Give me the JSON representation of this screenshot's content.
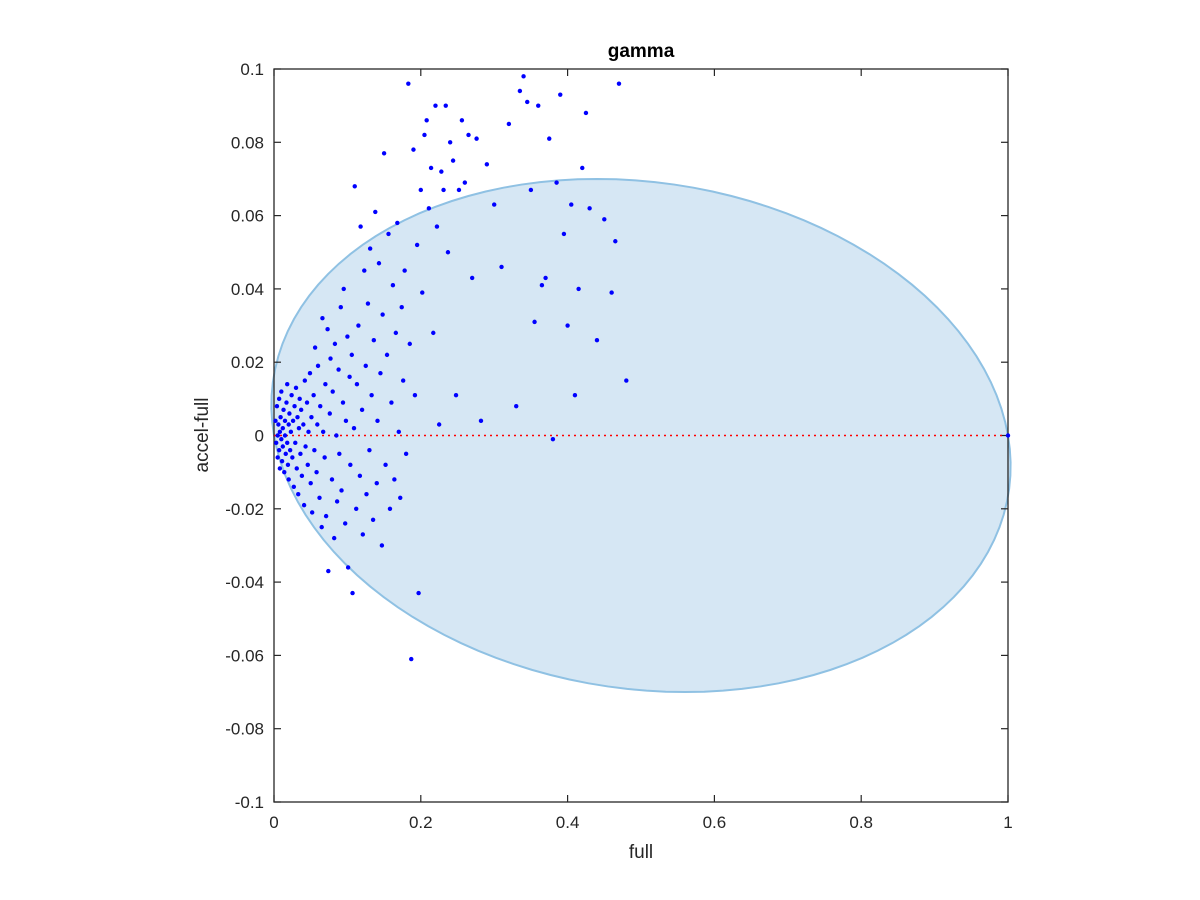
{
  "chart_data": {
    "type": "scatter",
    "title": "gamma",
    "xlabel": "full",
    "ylabel": "accel-full",
    "xlim": [
      0,
      1
    ],
    "ylim": [
      -0.1,
      0.1
    ],
    "xticks": [
      0,
      0.2,
      0.4,
      0.6,
      0.8,
      1
    ],
    "xtick_labels": [
      "0",
      "0.2",
      "0.4",
      "0.6",
      "0.8",
      "1"
    ],
    "yticks": [
      -0.1,
      -0.08,
      -0.06,
      -0.04,
      -0.02,
      0,
      0.02,
      0.04,
      0.06,
      0.08,
      0.1
    ],
    "ytick_labels": [
      "-0.1",
      "-0.08",
      "-0.06",
      "-0.04",
      "-0.02",
      "0",
      "0.02",
      "0.04",
      "0.06",
      "0.08",
      "0.1"
    ],
    "grid": false,
    "colors": {
      "points": "#0000ff",
      "ellipse_fill": "#d6e7f4",
      "ellipse_edge": "#8fc1e3",
      "reference_line": "#ff0000",
      "axes": "#262626"
    },
    "ellipse": {
      "center": [
        0.5,
        0.0
      ],
      "x_radius": 0.5,
      "y_radius": 0.07,
      "tilt": "slight"
    },
    "reference_line": {
      "y": 0,
      "x_range": [
        0,
        1
      ],
      "style": "dotted"
    },
    "series": [
      {
        "points": [
          [
            0.002,
            0.004
          ],
          [
            0.003,
            -0.002
          ],
          [
            0.004,
            0.008
          ],
          [
            0.005,
            0.0
          ],
          [
            0.005,
            -0.006
          ],
          [
            0.006,
            0.003
          ],
          [
            0.007,
            0.01
          ],
          [
            0.007,
            -0.004
          ],
          [
            0.008,
            0.001
          ],
          [
            0.008,
            -0.009
          ],
          [
            0.009,
            0.005
          ],
          [
            0.01,
            -0.001
          ],
          [
            0.01,
            0.012
          ],
          [
            0.011,
            -0.007
          ],
          [
            0.012,
            0.002
          ],
          [
            0.012,
            -0.003
          ],
          [
            0.013,
            0.007
          ],
          [
            0.014,
            -0.01
          ],
          [
            0.015,
            0.004
          ],
          [
            0.015,
            0.0
          ],
          [
            0.016,
            -0.005
          ],
          [
            0.017,
            0.009
          ],
          [
            0.018,
            -0.002
          ],
          [
            0.018,
            0.014
          ],
          [
            0.019,
            -0.008
          ],
          [
            0.02,
            0.003
          ],
          [
            0.02,
            -0.012
          ],
          [
            0.021,
            0.006
          ],
          [
            0.022,
            -0.004
          ],
          [
            0.023,
            0.001
          ],
          [
            0.024,
            0.011
          ],
          [
            0.025,
            -0.006
          ],
          [
            0.026,
            0.004
          ],
          [
            0.027,
            -0.014
          ],
          [
            0.028,
            0.008
          ],
          [
            0.029,
            -0.002
          ],
          [
            0.03,
            0.013
          ],
          [
            0.031,
            -0.009
          ],
          [
            0.032,
            0.005
          ],
          [
            0.033,
            -0.016
          ],
          [
            0.034,
            0.002
          ],
          [
            0.035,
            0.01
          ],
          [
            0.036,
            -0.005
          ],
          [
            0.037,
            0.007
          ],
          [
            0.038,
            -0.011
          ],
          [
            0.04,
            0.003
          ],
          [
            0.041,
            -0.019
          ],
          [
            0.042,
            0.015
          ],
          [
            0.043,
            -0.003
          ],
          [
            0.045,
            0.009
          ],
          [
            0.046,
            -0.008
          ],
          [
            0.047,
            0.001
          ],
          [
            0.049,
            0.017
          ],
          [
            0.05,
            -0.013
          ],
          [
            0.051,
            0.005
          ],
          [
            0.052,
            -0.021
          ],
          [
            0.054,
            0.011
          ],
          [
            0.055,
            -0.004
          ],
          [
            0.056,
            0.024
          ],
          [
            0.058,
            -0.01
          ],
          [
            0.059,
            0.003
          ],
          [
            0.06,
            0.019
          ],
          [
            0.062,
            -0.017
          ],
          [
            0.063,
            0.008
          ],
          [
            0.065,
            -0.025
          ],
          [
            0.066,
            0.032
          ],
          [
            0.067,
            0.001
          ],
          [
            0.069,
            -0.006
          ],
          [
            0.07,
            0.014
          ],
          [
            0.071,
            -0.022
          ],
          [
            0.073,
            0.029
          ],
          [
            0.074,
            -0.037
          ],
          [
            0.076,
            0.006
          ],
          [
            0.077,
            0.021
          ],
          [
            0.079,
            -0.012
          ],
          [
            0.08,
            0.012
          ],
          [
            0.082,
            -0.028
          ],
          [
            0.083,
            0.025
          ],
          [
            0.085,
            0.0
          ],
          [
            0.086,
            -0.018
          ],
          [
            0.088,
            0.018
          ],
          [
            0.089,
            -0.005
          ],
          [
            0.091,
            0.035
          ],
          [
            0.092,
            -0.015
          ],
          [
            0.094,
            0.009
          ],
          [
            0.095,
            0.04
          ],
          [
            0.097,
            -0.024
          ],
          [
            0.098,
            0.004
          ],
          [
            0.1,
            0.027
          ],
          [
            0.101,
            -0.036
          ],
          [
            0.103,
            0.016
          ],
          [
            0.104,
            -0.008
          ],
          [
            0.106,
            0.022
          ],
          [
            0.107,
            -0.043
          ],
          [
            0.109,
            0.002
          ],
          [
            0.11,
            0.068
          ],
          [
            0.112,
            -0.02
          ],
          [
            0.113,
            0.014
          ],
          [
            0.115,
            0.03
          ],
          [
            0.117,
            -0.011
          ],
          [
            0.118,
            0.057
          ],
          [
            0.12,
            0.007
          ],
          [
            0.121,
            -0.027
          ],
          [
            0.123,
            0.045
          ],
          [
            0.125,
            0.019
          ],
          [
            0.126,
            -0.016
          ],
          [
            0.128,
            0.036
          ],
          [
            0.13,
            -0.004
          ],
          [
            0.131,
            0.051
          ],
          [
            0.133,
            0.011
          ],
          [
            0.135,
            -0.023
          ],
          [
            0.136,
            0.026
          ],
          [
            0.138,
            0.061
          ],
          [
            0.14,
            -0.013
          ],
          [
            0.141,
            0.004
          ],
          [
            0.143,
            0.047
          ],
          [
            0.145,
            0.017
          ],
          [
            0.147,
            -0.03
          ],
          [
            0.148,
            0.033
          ],
          [
            0.15,
            0.077
          ],
          [
            0.152,
            -0.008
          ],
          [
            0.154,
            0.022
          ],
          [
            0.156,
            0.055
          ],
          [
            0.158,
            -0.02
          ],
          [
            0.16,
            0.009
          ],
          [
            0.162,
            0.041
          ],
          [
            0.164,
            -0.012
          ],
          [
            0.166,
            0.028
          ],
          [
            0.168,
            0.058
          ],
          [
            0.17,
            0.001
          ],
          [
            0.172,
            -0.017
          ],
          [
            0.174,
            0.035
          ],
          [
            0.176,
            0.015
          ],
          [
            0.178,
            0.045
          ],
          [
            0.18,
            -0.005
          ],
          [
            0.183,
            0.096
          ],
          [
            0.185,
            0.025
          ],
          [
            0.187,
            -0.061
          ],
          [
            0.19,
            0.078
          ],
          [
            0.192,
            0.011
          ],
          [
            0.195,
            0.052
          ],
          [
            0.197,
            -0.043
          ],
          [
            0.2,
            0.067
          ],
          [
            0.202,
            0.039
          ],
          [
            0.205,
            0.082
          ],
          [
            0.208,
            0.086
          ],
          [
            0.211,
            0.062
          ],
          [
            0.214,
            0.073
          ],
          [
            0.217,
            0.028
          ],
          [
            0.22,
            0.09
          ],
          [
            0.222,
            0.057
          ],
          [
            0.225,
            0.003
          ],
          [
            0.228,
            0.072
          ],
          [
            0.231,
            0.067
          ],
          [
            0.234,
            0.09
          ],
          [
            0.237,
            0.05
          ],
          [
            0.24,
            0.08
          ],
          [
            0.244,
            0.075
          ],
          [
            0.248,
            0.011
          ],
          [
            0.252,
            0.067
          ],
          [
            0.256,
            0.086
          ],
          [
            0.26,
            0.069
          ],
          [
            0.265,
            0.082
          ],
          [
            0.27,
            0.043
          ],
          [
            0.276,
            0.081
          ],
          [
            0.282,
            0.004
          ],
          [
            0.29,
            0.074
          ],
          [
            0.3,
            0.063
          ],
          [
            0.31,
            0.046
          ],
          [
            0.32,
            0.085
          ],
          [
            0.33,
            0.008
          ],
          [
            0.335,
            0.094
          ],
          [
            0.34,
            0.098
          ],
          [
            0.345,
            0.091
          ],
          [
            0.35,
            0.067
          ],
          [
            0.355,
            0.031
          ],
          [
            0.36,
            0.09
          ],
          [
            0.365,
            0.041
          ],
          [
            0.37,
            0.043
          ],
          [
            0.375,
            0.081
          ],
          [
            0.38,
            -0.001
          ],
          [
            0.385,
            0.069
          ],
          [
            0.39,
            0.093
          ],
          [
            0.395,
            0.055
          ],
          [
            0.4,
            0.03
          ],
          [
            0.405,
            0.063
          ],
          [
            0.41,
            0.011
          ],
          [
            0.415,
            0.04
          ],
          [
            0.42,
            0.073
          ],
          [
            0.425,
            0.088
          ],
          [
            0.43,
            0.062
          ],
          [
            0.44,
            0.026
          ],
          [
            0.45,
            0.059
          ],
          [
            0.46,
            0.039
          ],
          [
            0.465,
            0.053
          ],
          [
            0.47,
            0.096
          ],
          [
            0.48,
            0.015
          ],
          [
            1.0,
            0.0
          ]
        ]
      }
    ]
  }
}
